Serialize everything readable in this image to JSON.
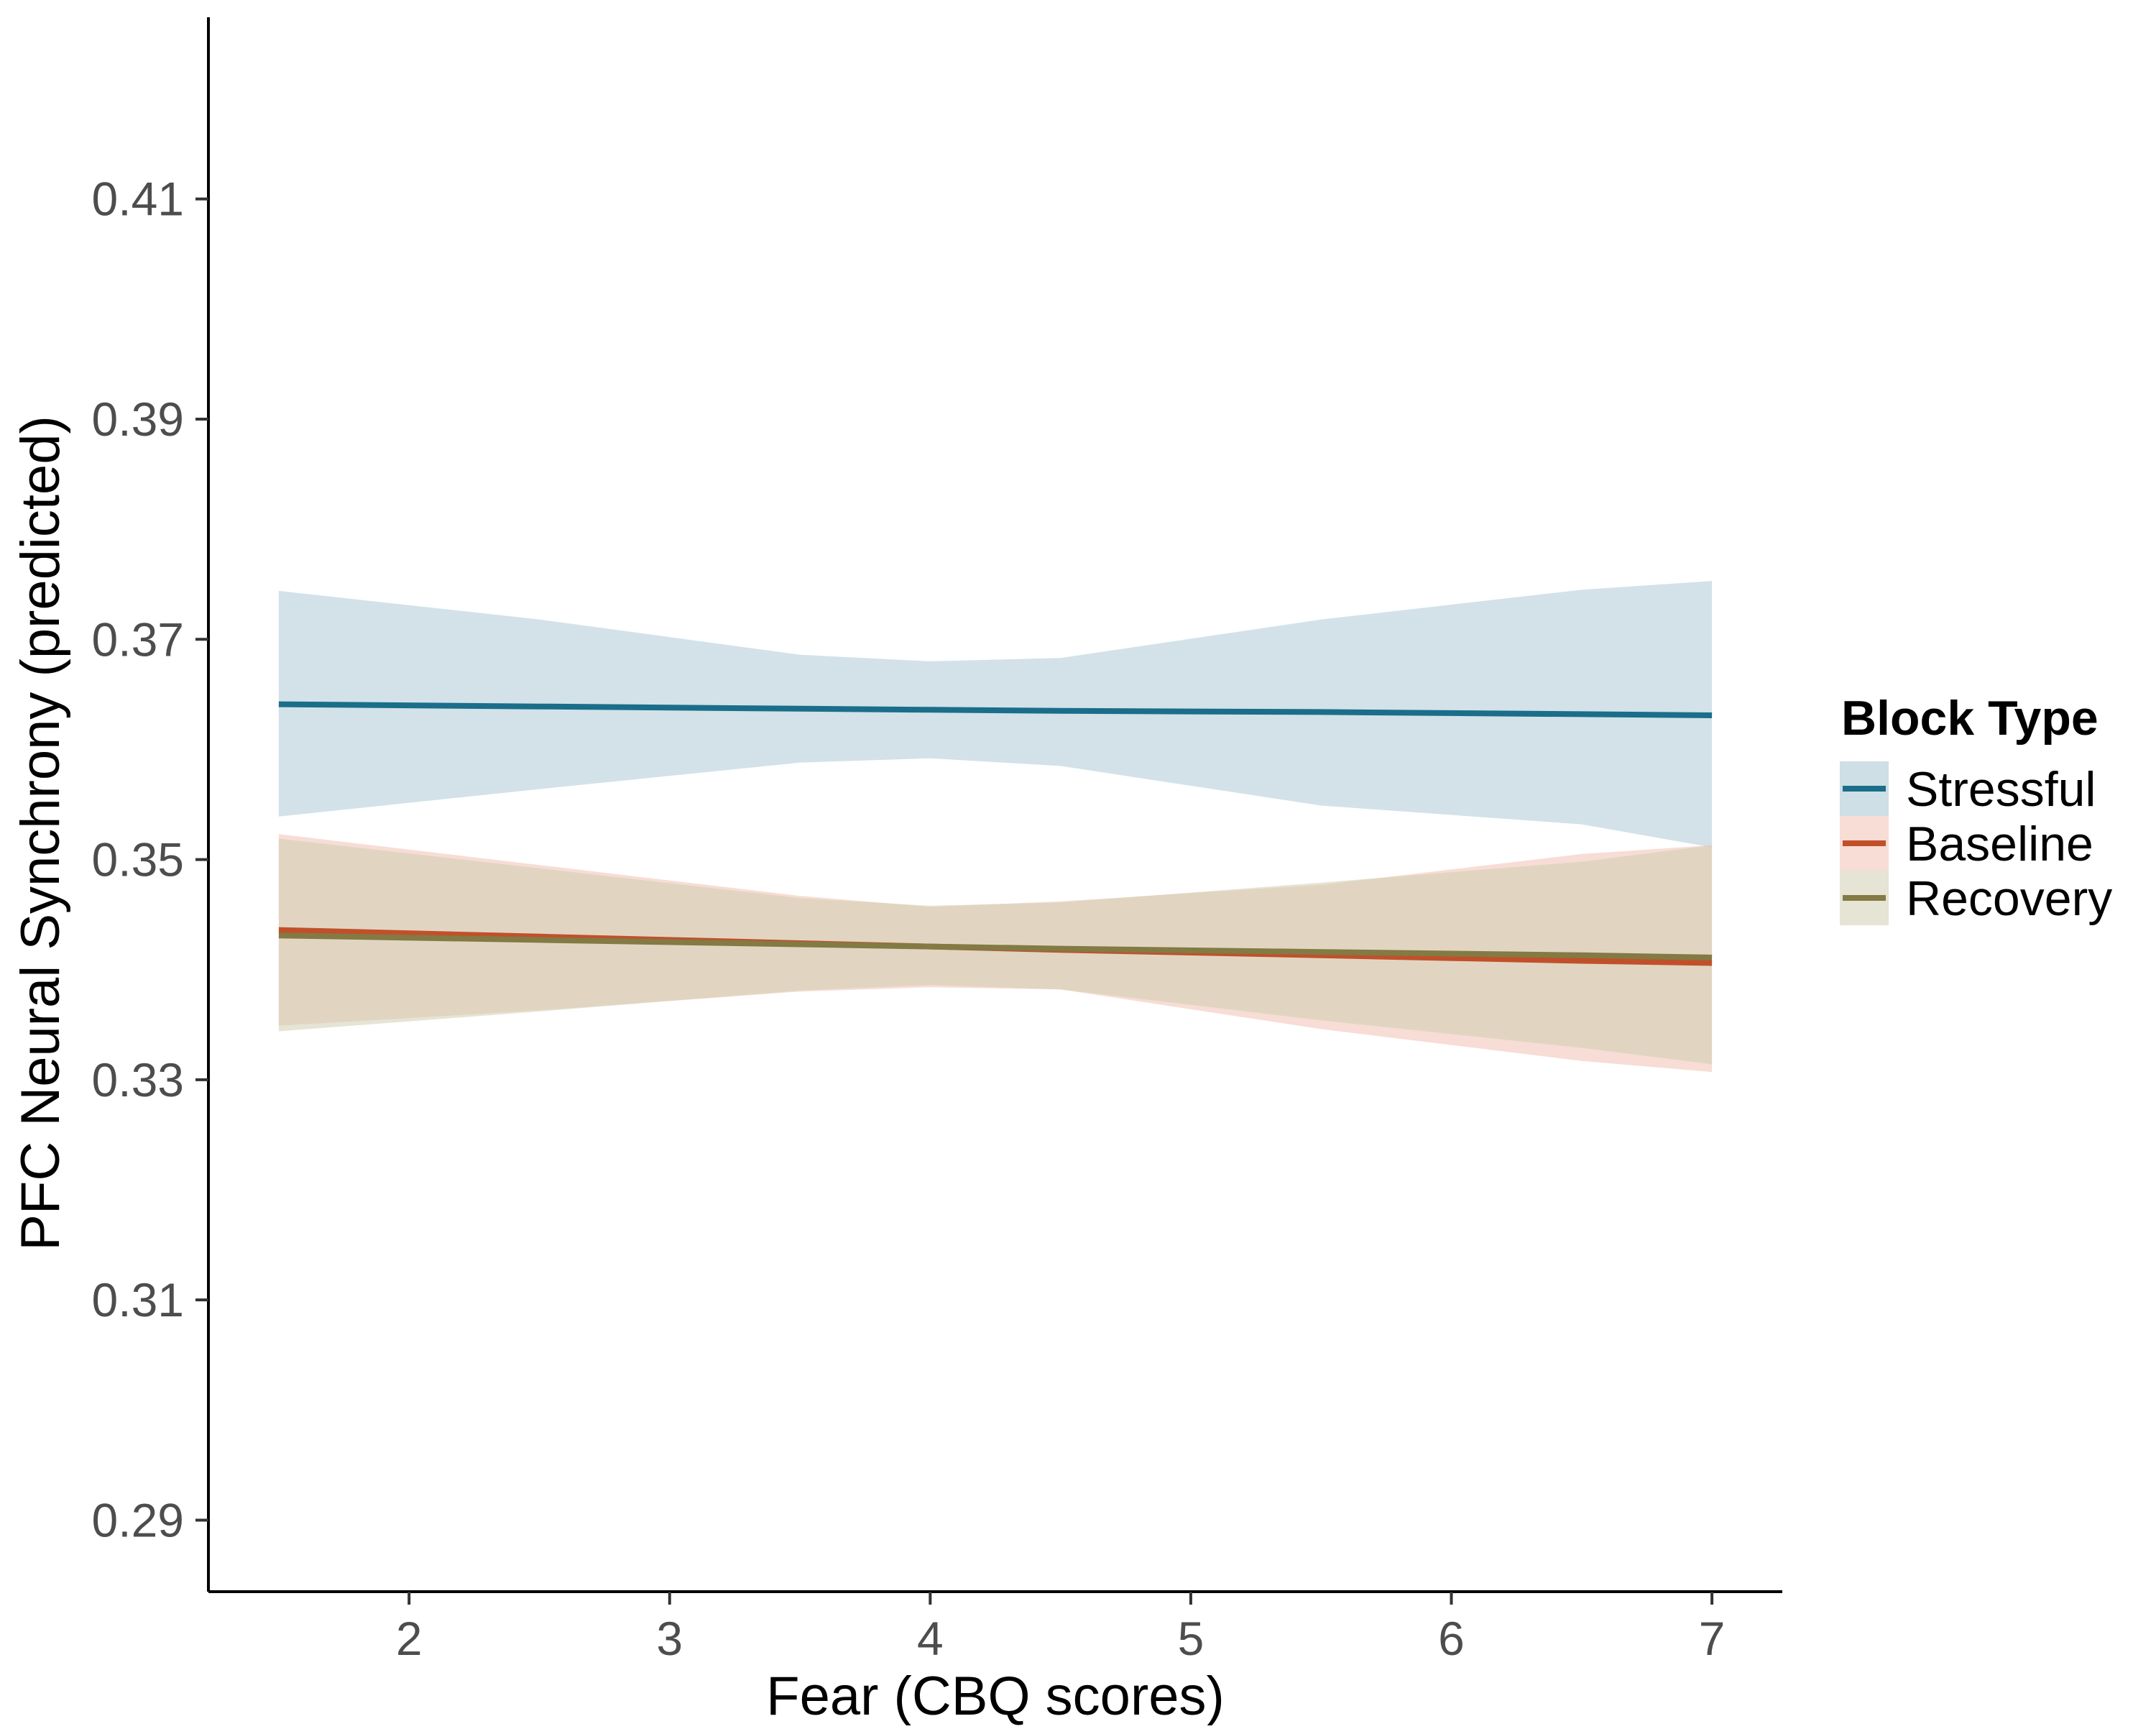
{
  "chart_data": {
    "type": "line",
    "title": "",
    "xlabel": "Fear (CBQ scores)",
    "ylabel": "PFC Neural Synchrony (predicted)",
    "xlim": [
      1.23,
      7.27
    ],
    "ylim": [
      0.2835,
      0.4265
    ],
    "x_ticks": [
      2,
      3,
      4,
      5,
      6,
      7
    ],
    "x_tick_labels": [
      "2",
      "3",
      "4",
      "5",
      "6",
      "7"
    ],
    "y_ticks": [
      0.29,
      0.31,
      0.33,
      0.35,
      0.37,
      0.39,
      0.41
    ],
    "y_tick_labels": [
      "0.29",
      "0.31",
      "0.33",
      "0.35",
      "0.37",
      "0.39",
      "0.41"
    ],
    "grid": false,
    "legend": {
      "title": "Block Type",
      "placement": "right"
    },
    "series": [
      {
        "name": "Stressful",
        "color": "#1a6e8a",
        "ribbon_color": "#a5c5d2",
        "x": [
          1.5,
          2.5,
          3.5,
          4.0,
          4.5,
          5.5,
          6.5,
          7.0
        ],
        "y": [
          0.3641,
          0.3639,
          0.3637,
          0.3636,
          0.3635,
          0.3634,
          0.3632,
          0.3631
        ],
        "lower": [
          0.3539,
          0.3564,
          0.3588,
          0.3592,
          0.3585,
          0.3549,
          0.3532,
          0.3511
        ],
        "upper": [
          0.3744,
          0.3718,
          0.3686,
          0.368,
          0.3683,
          0.3718,
          0.3745,
          0.3753
        ]
      },
      {
        "name": "Baseline",
        "color": "#c1502a",
        "ribbon_color": "#f0c1b2",
        "x": [
          1.5,
          2.5,
          3.5,
          4.0,
          4.5,
          5.5,
          6.5,
          7.0
        ],
        "y": [
          0.3436,
          0.343,
          0.3424,
          0.3421,
          0.3418,
          0.3413,
          0.3408,
          0.3406
        ],
        "lower": [
          0.3349,
          0.3363,
          0.338,
          0.3384,
          0.3382,
          0.3346,
          0.3317,
          0.3307
        ],
        "upper": [
          0.3523,
          0.3495,
          0.3467,
          0.3457,
          0.3462,
          0.3477,
          0.3505,
          0.3513
        ]
      },
      {
        "name": "Recovery",
        "color": "#837a44",
        "ribbon_color": "#cfcdb3",
        "x": [
          1.5,
          2.5,
          3.5,
          4.0,
          4.5,
          5.5,
          6.5,
          7.0
        ],
        "y": [
          0.3431,
          0.3427,
          0.3423,
          0.3421,
          0.3419,
          0.3416,
          0.3413,
          0.3411
        ],
        "lower": [
          0.3344,
          0.3362,
          0.3381,
          0.3386,
          0.3382,
          0.3354,
          0.3329,
          0.3314
        ],
        "upper": [
          0.3519,
          0.3492,
          0.3465,
          0.3458,
          0.3461,
          0.3479,
          0.3498,
          0.3513
        ]
      }
    ]
  }
}
